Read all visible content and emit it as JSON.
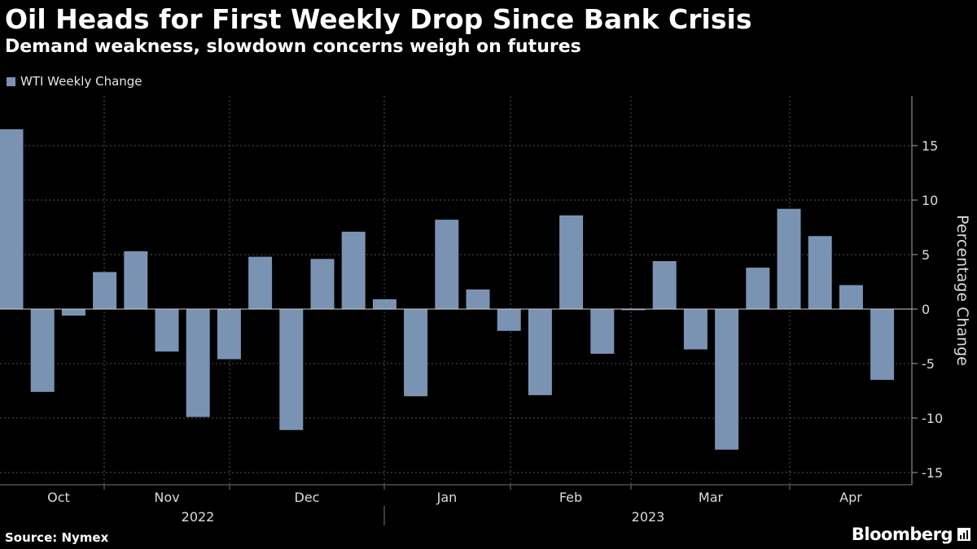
{
  "chart_data": {
    "type": "bar",
    "title": "Oil Heads for First Weekly Drop Since Bank Crisis",
    "subtitle": "Demand weakness, slowdown concerns weigh on futures",
    "ylabel": "Percentage Change",
    "ylim": [
      -16,
      19
    ],
    "yticks": [
      15,
      10,
      5,
      0,
      -5,
      -10,
      -15
    ],
    "series": [
      {
        "name": "WTI Weekly Change",
        "color": "#7b93b3",
        "values": [
          16.5,
          -7.6,
          -0.6,
          3.4,
          5.3,
          -3.9,
          -9.9,
          -4.6,
          4.8,
          -11.1,
          4.6,
          7.1,
          0.9,
          -8.0,
          8.2,
          1.8,
          -2.0,
          -7.9,
          8.6,
          -4.1,
          -0.1,
          4.4,
          -3.7,
          -12.9,
          3.8,
          9.2,
          6.7,
          2.2,
          -6.5
        ]
      }
    ],
    "months": [
      "Oct",
      "Nov",
      "Dec",
      "Jan",
      "Feb",
      "Mar",
      "Apr"
    ],
    "years": [
      "2022",
      "2023"
    ],
    "source": "Source: Nymex",
    "brand": "Bloomberg",
    "colors": {
      "background": "#000000",
      "bar": "#7b93b3",
      "grid": "#555555",
      "text": "#dcdcdc"
    }
  }
}
